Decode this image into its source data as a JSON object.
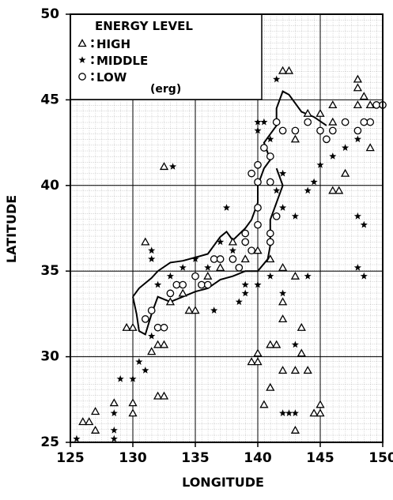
{
  "chart_data": {
    "type": "scatter",
    "xlabel": "LONGITUDE",
    "ylabel": "LATITUDE",
    "legend_title": "ENERGY LEVEL",
    "legend_unit": "(erg)",
    "legend": "upper left",
    "xlim": [
      125,
      150
    ],
    "xticks": [
      125,
      130,
      135,
      140,
      145,
      150
    ],
    "ylim": [
      25,
      50
    ],
    "yticks": [
      25,
      30,
      35,
      40,
      45,
      50
    ],
    "grid": true,
    "series": [
      {
        "name": "HIGH",
        "marker": "triangle",
        "color": "#000000",
        "x": [
          126,
          126.5,
          127,
          127,
          128.5,
          130,
          130,
          129.5,
          130,
          131,
          132.5,
          132,
          132.5,
          131.5,
          132,
          132.5,
          133,
          134,
          134.5,
          135,
          136,
          137,
          138,
          139,
          140,
          141,
          142,
          143,
          140,
          139.5,
          140,
          141,
          141.5,
          142,
          142,
          142,
          143,
          143.5,
          143.5,
          144,
          142,
          142.5,
          143,
          144,
          145,
          146,
          146,
          147,
          148,
          148,
          148.5,
          148,
          149,
          149,
          146,
          146.5,
          144.5,
          145,
          145,
          143,
          141,
          140.5
        ],
        "values": [
          26.2,
          26.2,
          26.8,
          25.7,
          27.3,
          27.3,
          26.7,
          31.7,
          31.7,
          36.7,
          41.1,
          27.7,
          27.7,
          30.3,
          30.7,
          30.7,
          33.2,
          33.7,
          32.7,
          32.7,
          34.7,
          35.2,
          36.7,
          35.7,
          36.2,
          35.7,
          35.2,
          34.7,
          30.2,
          29.7,
          29.7,
          30.7,
          30.7,
          29.2,
          32.2,
          33.2,
          29.2,
          30.2,
          31.7,
          29.2,
          46.7,
          46.7,
          42.7,
          44.2,
          44.2,
          44.7,
          43.7,
          40.7,
          46.2,
          45.7,
          45.2,
          44.7,
          44.7,
          42.2,
          39.7,
          39.7,
          26.7,
          26.7,
          27.2,
          25.7,
          28.2,
          27.2
        ]
      },
      {
        "name": "MIDDLE",
        "marker": "star",
        "color": "#000000",
        "x": [
          125.5,
          128.5,
          128.5,
          128.5,
          129,
          130,
          130.5,
          131,
          131.5,
          131.5,
          131.5,
          133.2,
          132,
          133,
          134,
          135,
          136,
          136.5,
          137,
          138,
          139,
          140,
          141,
          142,
          139,
          138.5,
          141.5,
          141,
          140,
          140,
          140.5,
          142,
          141.5,
          142,
          143,
          144,
          144.5,
          145,
          146,
          147,
          148,
          148,
          148.5,
          148,
          148.5,
          144,
          143,
          142,
          142.5,
          143,
          137.5
        ],
        "values": [
          25.2,
          25.2,
          25.7,
          26.7,
          28.7,
          28.7,
          29.7,
          29.2,
          31.2,
          36.2,
          35.7,
          41.1,
          34.2,
          34.7,
          35.2,
          35.7,
          35.2,
          32.7,
          36.7,
          36.2,
          34.2,
          34.2,
          34.7,
          33.7,
          33.7,
          33.2,
          46.2,
          42.7,
          43.7,
          43.2,
          43.7,
          40.7,
          39.7,
          38.7,
          38.2,
          39.7,
          40.2,
          41.2,
          41.7,
          42.2,
          42.7,
          38.2,
          37.7,
          35.2,
          34.7,
          34.7,
          30.7,
          26.7,
          26.7,
          26.7,
          38.7
        ]
      },
      {
        "name": "LOW",
        "marker": "circle",
        "color": "#000000",
        "x": [
          131,
          131.5,
          132,
          132.5,
          133,
          133.5,
          134,
          135,
          135.5,
          136,
          136.5,
          137,
          138,
          138.5,
          139,
          139.5,
          140,
          140,
          141,
          141.5,
          139.5,
          140,
          140,
          141,
          141.5,
          142,
          143,
          144,
          145,
          145.5,
          146,
          147,
          148,
          149,
          149.5,
          150,
          148.5,
          140.5,
          141,
          141,
          139
        ],
        "values": [
          32.2,
          32.7,
          31.7,
          31.7,
          33.7,
          34.2,
          34.2,
          34.7,
          34.2,
          34.2,
          35.7,
          35.7,
          35.7,
          35.2,
          36.7,
          36.2,
          37.7,
          38.7,
          37.2,
          38.2,
          40.7,
          41.2,
          40.2,
          41.7,
          43.7,
          43.2,
          43.2,
          43.7,
          43.2,
          42.7,
          43.2,
          43.7,
          43.2,
          43.7,
          44.7,
          44.7,
          43.7,
          42.2,
          40.2,
          36.7,
          37.2
        ]
      }
    ]
  }
}
